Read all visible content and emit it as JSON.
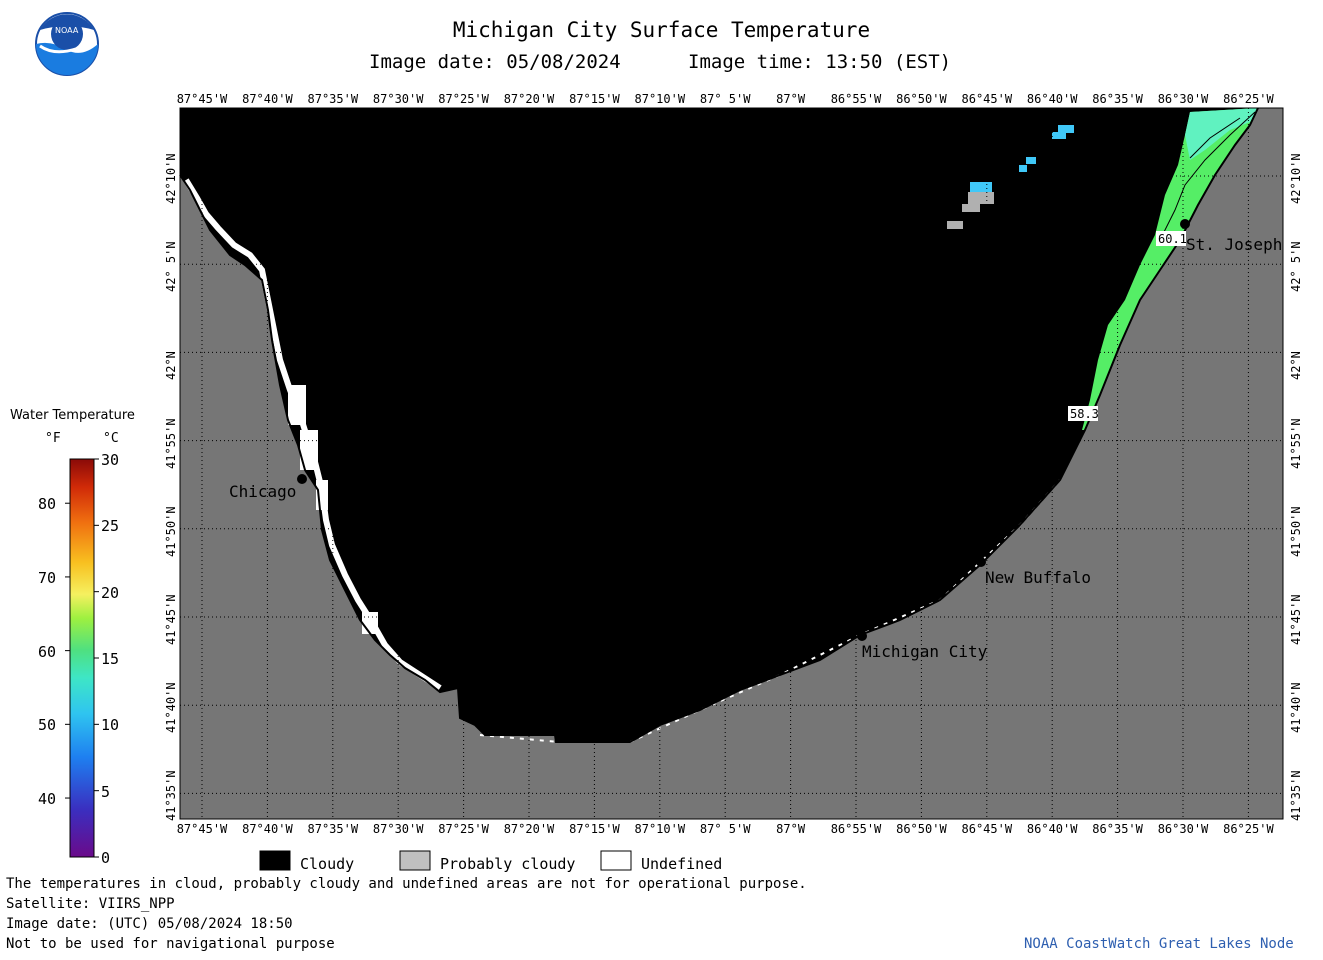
{
  "title": "Michigan City Surface Temperature",
  "image_date_label": "Image date: 05/08/2024",
  "image_time_label": "Image time: 13:50 (EST)",
  "logo_text": "NOAA",
  "lon_labels": [
    "87°45'W",
    "87°40'W",
    "87°35'W",
    "87°30'W",
    "87°25'W",
    "87°20'W",
    "87°15'W",
    "87°10'W",
    "87° 5'W",
    "87°W",
    "86°55'W",
    "86°50'W",
    "86°45'W",
    "86°40'W",
    "86°35'W",
    "86°30'W",
    "86°25'W"
  ],
  "lat_labels": [
    "42°10'N",
    "42° 5'N",
    "42°N",
    "41°55'N",
    "41°50'N",
    "41°45'N",
    "41°40'N",
    "41°35'N"
  ],
  "places": {
    "chicago": "Chicago",
    "st_joseph": "St. Joseph",
    "new_buffalo": "New Buffalo",
    "michigan_city": "Michigan City"
  },
  "temp_labels": {
    "north": "60.1",
    "south": "58.3"
  },
  "colorbar": {
    "title": "Water Temperature",
    "unit_f": "°F",
    "unit_c": "°C",
    "f_ticks": [
      "80",
      "70",
      "60",
      "50",
      "40"
    ],
    "c_ticks": [
      "30",
      "25",
      "20",
      "15",
      "10",
      "5",
      "0"
    ]
  },
  "legend": {
    "cloudy": "Cloudy",
    "probably_cloudy": "Probably cloudy",
    "undefined": "Undefined"
  },
  "footer": {
    "line1": "The temperatures in cloud, probably cloudy and undefined areas are not for operational purpose.",
    "line2": "Satellite: VIIRS_NPP",
    "line3": "Image date: (UTC) 05/08/2024  18:50",
    "line4": "Not to be used for navigational purpose",
    "credit": "NOAA CoastWatch Great Lakes Node"
  },
  "colors": {
    "cloudy": "#000000",
    "probably_cloudy": "#c0c0c0",
    "undefined": "#ffffff",
    "land": "#767676",
    "credit_text": "#2e5fb0"
  }
}
